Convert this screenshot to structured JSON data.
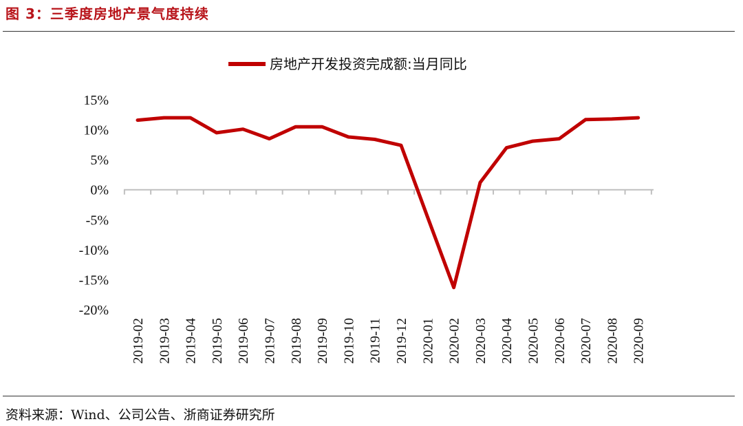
{
  "figure_title": "图 3：三季度房地产景气度持续",
  "source": "资料来源：Wind、公司公告、浙商证券研究所",
  "colors": {
    "title": "#b8141a",
    "series": "#c00000"
  },
  "chart_data": {
    "type": "line",
    "categories": [
      "2019-02",
      "2019-03",
      "2019-04",
      "2019-05",
      "2019-06",
      "2019-07",
      "2019-08",
      "2019-09",
      "2019-10",
      "2019-11",
      "2019-12",
      "2020-01",
      "2020-02",
      "2020-03",
      "2020-04",
      "2020-05",
      "2020-06",
      "2020-07",
      "2020-08",
      "2020-09"
    ],
    "series": [
      {
        "name": "房地产开发投资完成额:当月同比",
        "values": [
          11.6,
          12.0,
          12.0,
          9.5,
          10.1,
          8.5,
          10.5,
          10.5,
          8.8,
          8.4,
          7.4,
          -4.5,
          -16.3,
          1.2,
          7.0,
          8.1,
          8.5,
          11.7,
          11.8,
          12.0
        ]
      }
    ],
    "ylim": [
      -20,
      15
    ],
    "yticks": [
      "15%",
      "10%",
      "5%",
      "0%",
      "-5%",
      "-10%",
      "-15%",
      "-20%"
    ],
    "ytick_values": [
      15,
      10,
      5,
      0,
      -5,
      -10,
      -15,
      -20
    ],
    "legend_position": "top-center",
    "grid": false
  }
}
